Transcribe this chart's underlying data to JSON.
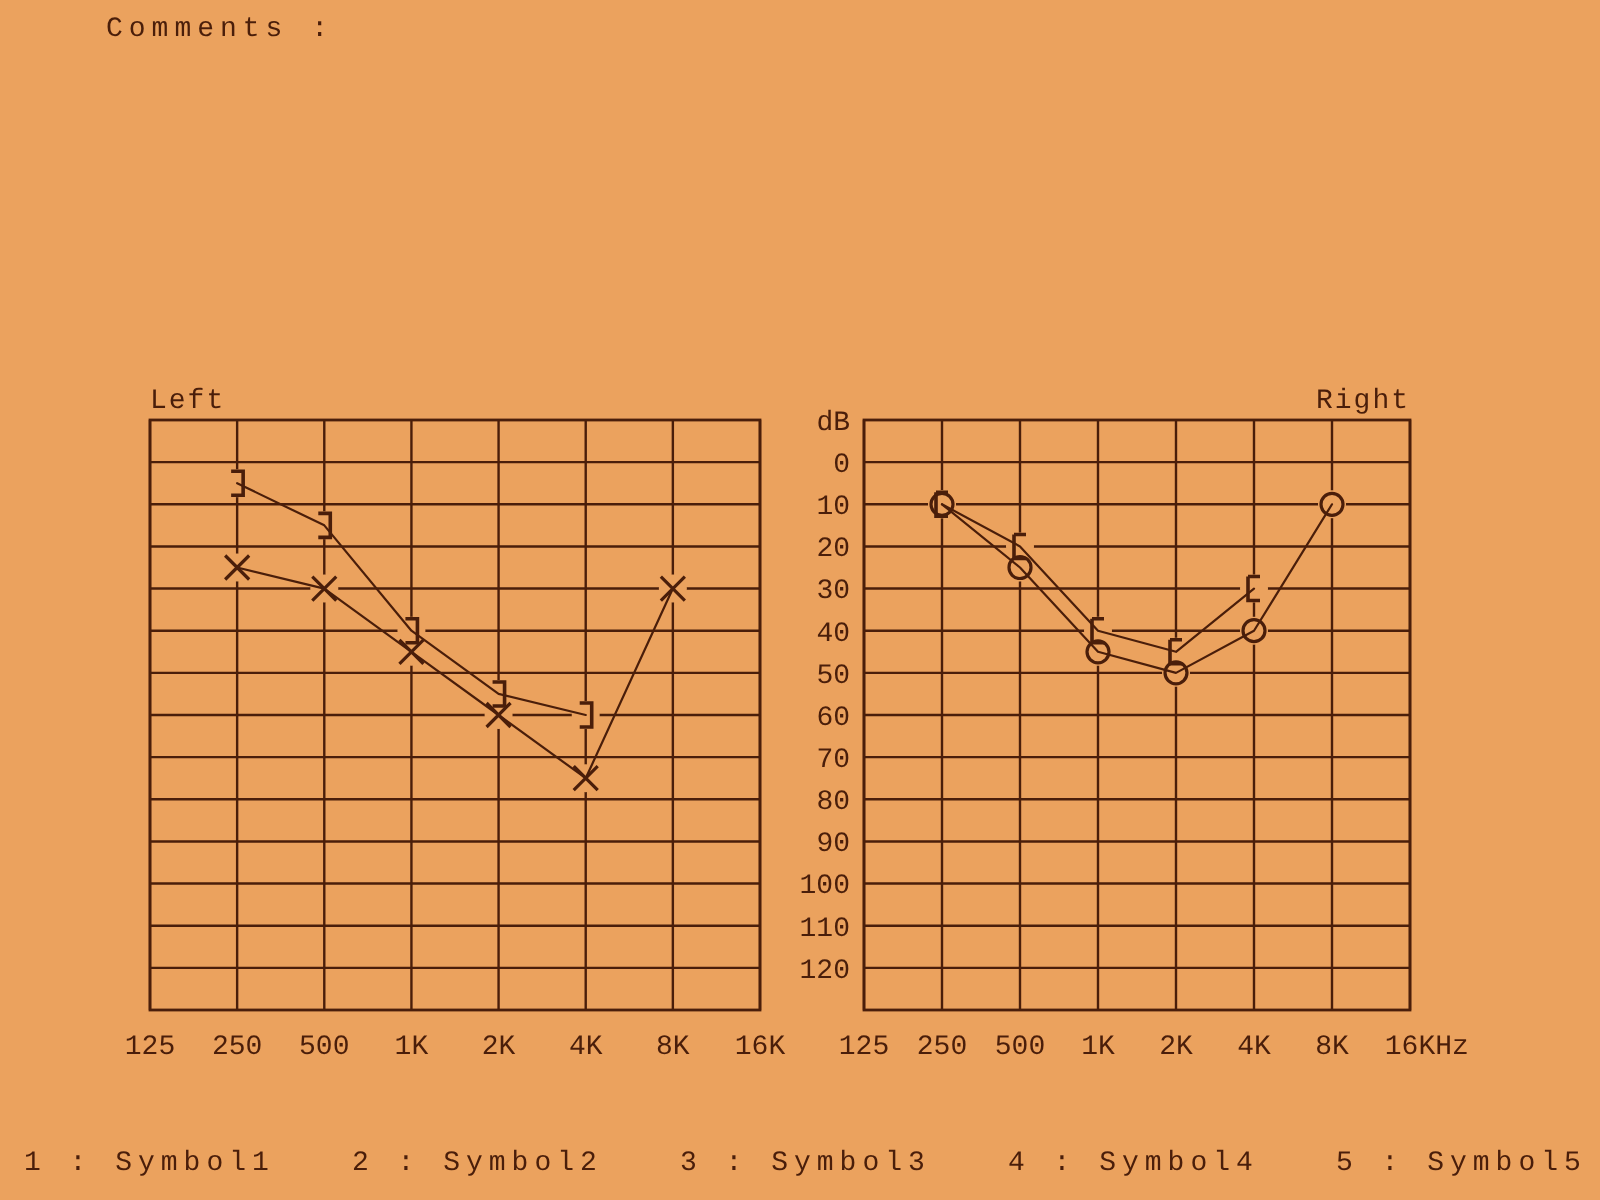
{
  "chart_data": [
    {
      "type": "line",
      "title": "Left",
      "series": [
        {
          "color": "#4a1e0a",
          "marker": "cross",
          "x": [
            250,
            500,
            1000,
            2000,
            4000,
            8000
          ],
          "values": [
            25,
            30,
            45,
            60,
            75,
            30
          ]
        },
        {
          "color": "#4a1e0a",
          "marker": "square",
          "x": [
            250,
            500,
            1000,
            2000,
            4000
          ],
          "values": [
            5,
            15,
            40,
            55,
            60
          ]
        }
      ],
      "xlim": [
        125,
        16000
      ],
      "xticks": [
        125,
        250,
        500,
        {
          "value": 1000,
          "label": "1K"
        },
        {
          "value": 2000,
          "label": "2K"
        },
        {
          "value": 4000,
          "label": "4K"
        },
        {
          "value": 8000,
          "label": "8K"
        },
        {
          "value": 16000,
          "label": "16K"
        }
      ],
      "log": "x",
      "ylim": [
        130,
        -10
      ],
      "yticks": [
        0,
        10,
        20,
        30,
        40,
        50,
        60,
        70,
        80,
        90,
        100,
        110,
        120
      ],
      "grid": true,
      "tick_labels": "x",
      "annotations": [
        "Comments :",
        "1 : Symbol1",
        "2 : Symbol2",
        "3 : Symbol3",
        "4 : Symbol4",
        "5 : Symbol5"
      ]
    },
    {
      "type": "line",
      "title": "Right",
      "ylabel": "dB",
      "xlabel": "Hz",
      "series": [
        {
          "color": "#4a1e0a",
          "marker": "circle",
          "x": [
            250,
            500,
            1000,
            2000,
            4000,
            8000
          ],
          "values": [
            10,
            25,
            45,
            50,
            40,
            10
          ]
        },
        {
          "color": "#4a1e0a",
          "marker": "square",
          "x": [
            250,
            500,
            1000,
            2000,
            4000
          ],
          "values": [
            10,
            20,
            40,
            45,
            30
          ]
        }
      ],
      "xlim": [
        125,
        16000
      ],
      "xticks": [
        125,
        250,
        500,
        {
          "value": 1000,
          "label": "1K"
        },
        {
          "value": 2000,
          "label": "2K"
        },
        {
          "value": 4000,
          "label": "4K"
        },
        {
          "value": 8000,
          "label": "8K"
        },
        {
          "value": 16000,
          "label": "16K"
        }
      ],
      "log": "x",
      "ylim": [
        130,
        -10
      ],
      "yticks": [
        0,
        10,
        20,
        30,
        40,
        50,
        60,
        70,
        80,
        90,
        100,
        110,
        120
      ],
      "grid": true
    }
  ]
}
